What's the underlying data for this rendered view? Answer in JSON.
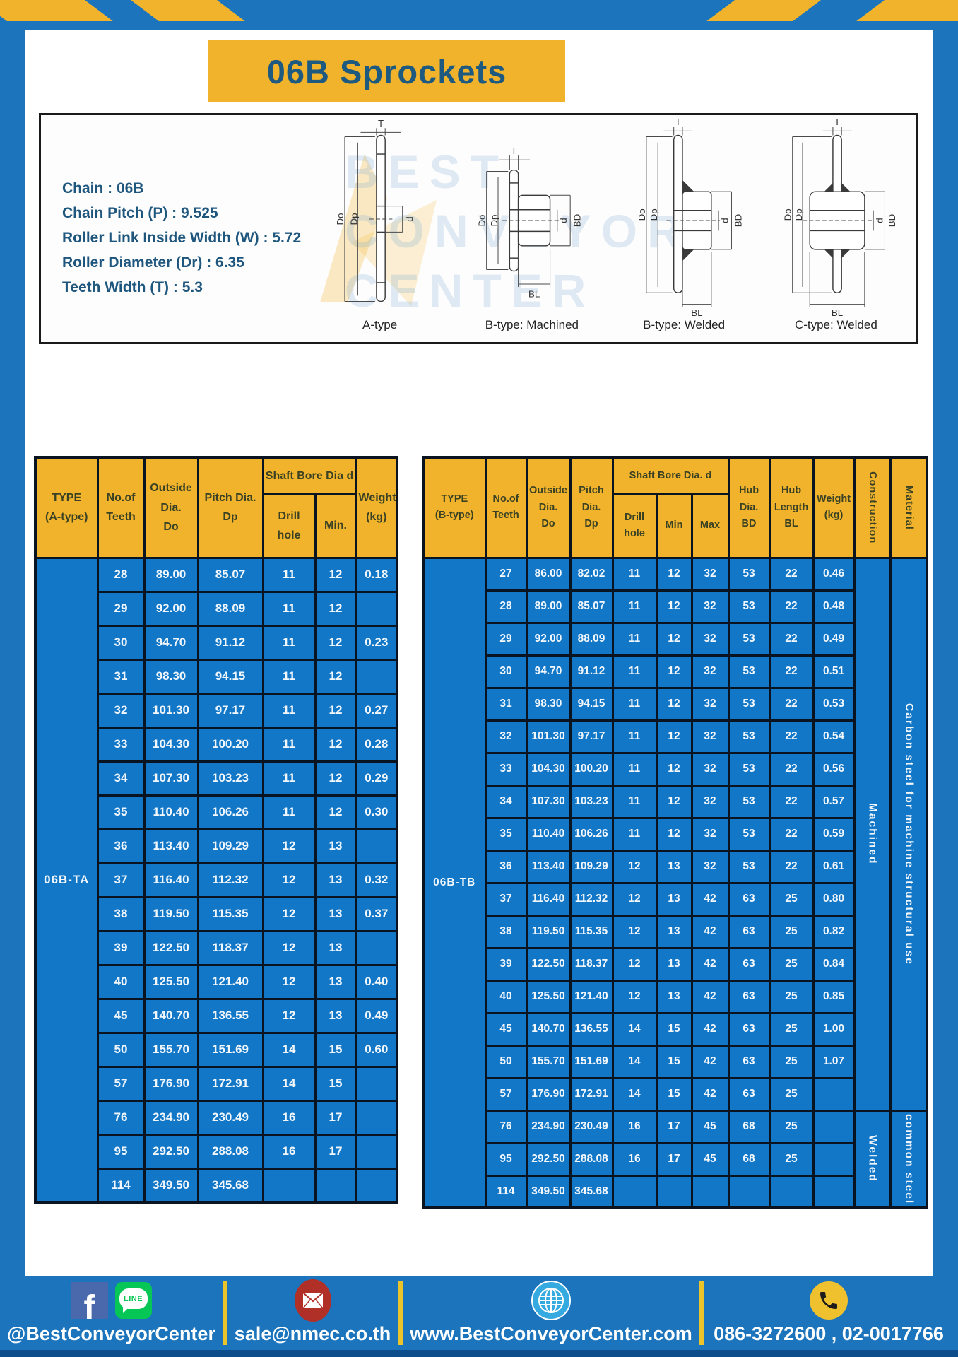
{
  "colors": {
    "frame_blue": "#1B74BC",
    "accent_yellow": "#F0B32B",
    "table_cell_blue": "#1377C8",
    "title_text_blue": "#1E5A80",
    "facebook_blue": "#4A69AD",
    "line_green": "#06C755",
    "email_red": "#B03028",
    "globe_blue": "#35AAE1",
    "phone_yellow": "#F0C12F",
    "footer_divider_yellow": "#EAC428"
  },
  "header": {
    "title": "06B Sprockets"
  },
  "specs": {
    "lines": [
      "Chain  : 06B",
      "Chain Pitch (P)  :  9.525",
      "Roller Link Inside Width (W)  :  5.72",
      "Roller Diameter (Dr)  : 6.35",
      "Teeth Width (T)  :  5.3"
    ]
  },
  "diagrams": {
    "watermark_lines": [
      "BEST",
      "CONVEYOR",
      "CENTER"
    ],
    "dim_labels": {
      "t": "T",
      "do": "Do",
      "dp": "Dp",
      "d": "d",
      "bd": "BD",
      "bl": "BL"
    },
    "captions": [
      "A-type",
      "B-type: Machined",
      "B-type: Welded",
      "C-type: Welded"
    ]
  },
  "tableA": {
    "col_type": "TYPE\n(A-type)",
    "col_teeth": "No.of\nTeeth",
    "col_outside": "Outside\nDia.\nDo",
    "col_pitch": "Pitch Dia.\nDp",
    "col_shaft_bore": "Shaft Bore Dia d",
    "col_drill": "Drill hole",
    "col_min": "Min.",
    "col_weight": "Weight\n(kg)",
    "type_value": "06B-TA",
    "rows": [
      [
        "28",
        "89.00",
        "85.07",
        "11",
        "12",
        "0.18"
      ],
      [
        "29",
        "92.00",
        "88.09",
        "11",
        "12",
        ""
      ],
      [
        "30",
        "94.70",
        "91.12",
        "11",
        "12",
        "0.23"
      ],
      [
        "31",
        "98.30",
        "94.15",
        "11",
        "12",
        ""
      ],
      [
        "32",
        "101.30",
        "97.17",
        "11",
        "12",
        "0.27"
      ],
      [
        "33",
        "104.30",
        "100.20",
        "11",
        "12",
        "0.28"
      ],
      [
        "34",
        "107.30",
        "103.23",
        "11",
        "12",
        "0.29"
      ],
      [
        "35",
        "110.40",
        "106.26",
        "11",
        "12",
        "0.30"
      ],
      [
        "36",
        "113.40",
        "109.29",
        "12",
        "13",
        ""
      ],
      [
        "37",
        "116.40",
        "112.32",
        "12",
        "13",
        "0.32"
      ],
      [
        "38",
        "119.50",
        "115.35",
        "12",
        "13",
        "0.37"
      ],
      [
        "39",
        "122.50",
        "118.37",
        "12",
        "13",
        ""
      ],
      [
        "40",
        "125.50",
        "121.40",
        "12",
        "13",
        "0.40"
      ],
      [
        "45",
        "140.70",
        "136.55",
        "12",
        "13",
        "0.49"
      ],
      [
        "50",
        "155.70",
        "151.69",
        "14",
        "15",
        "0.60"
      ],
      [
        "57",
        "176.90",
        "172.91",
        "14",
        "15",
        ""
      ],
      [
        "76",
        "234.90",
        "230.49",
        "16",
        "17",
        ""
      ],
      [
        "95",
        "292.50",
        "288.08",
        "16",
        "17",
        ""
      ],
      [
        "114",
        "349.50",
        "345.68",
        "",
        "",
        ""
      ]
    ]
  },
  "tableB": {
    "col_type": "TYPE\n(B-type)",
    "col_teeth": "No.of\nTeeth",
    "col_outside": "Outside\nDia.\nDo",
    "col_pitch": "Pitch\nDia.\nDp",
    "col_shaft_bore": "Shaft Bore Dia. d",
    "col_drill": "Drill hole",
    "col_min": "Min",
    "col_max": "Max",
    "col_hub_dia": "Hub\nDia.\nBD",
    "col_hub_len": "Hub\nLength\nBL",
    "col_weight": "Weight\n(kg)",
    "col_construction": "Construction",
    "col_material": "Material",
    "type_value": "06B-TB",
    "construction": [
      {
        "label": "Machined",
        "rows": 17
      },
      {
        "label": "Welded",
        "rows": 3
      }
    ],
    "material": [
      {
        "label": "Carbon steel for machine structural use",
        "rows": 17
      },
      {
        "label": "common steel",
        "rows": 3
      }
    ],
    "rows": [
      [
        "27",
        "86.00",
        "82.02",
        "11",
        "12",
        "32",
        "53",
        "22",
        "0.46"
      ],
      [
        "28",
        "89.00",
        "85.07",
        "11",
        "12",
        "32",
        "53",
        "22",
        "0.48"
      ],
      [
        "29",
        "92.00",
        "88.09",
        "11",
        "12",
        "32",
        "53",
        "22",
        "0.49"
      ],
      [
        "30",
        "94.70",
        "91.12",
        "11",
        "12",
        "32",
        "53",
        "22",
        "0.51"
      ],
      [
        "31",
        "98.30",
        "94.15",
        "11",
        "12",
        "32",
        "53",
        "22",
        "0.53"
      ],
      [
        "32",
        "101.30",
        "97.17",
        "11",
        "12",
        "32",
        "53",
        "22",
        "0.54"
      ],
      [
        "33",
        "104.30",
        "100.20",
        "11",
        "12",
        "32",
        "53",
        "22",
        "0.56"
      ],
      [
        "34",
        "107.30",
        "103.23",
        "11",
        "12",
        "32",
        "53",
        "22",
        "0.57"
      ],
      [
        "35",
        "110.40",
        "106.26",
        "11",
        "12",
        "32",
        "53",
        "22",
        "0.59"
      ],
      [
        "36",
        "113.40",
        "109.29",
        "12",
        "13",
        "32",
        "53",
        "22",
        "0.61"
      ],
      [
        "37",
        "116.40",
        "112.32",
        "12",
        "13",
        "42",
        "63",
        "25",
        "0.80"
      ],
      [
        "38",
        "119.50",
        "115.35",
        "12",
        "13",
        "42",
        "63",
        "25",
        "0.82"
      ],
      [
        "39",
        "122.50",
        "118.37",
        "12",
        "13",
        "42",
        "63",
        "25",
        "0.84"
      ],
      [
        "40",
        "125.50",
        "121.40",
        "12",
        "13",
        "42",
        "63",
        "25",
        "0.85"
      ],
      [
        "45",
        "140.70",
        "136.55",
        "14",
        "15",
        "42",
        "63",
        "25",
        "1.00"
      ],
      [
        "50",
        "155.70",
        "151.69",
        "14",
        "15",
        "42",
        "63",
        "25",
        "1.07"
      ],
      [
        "57",
        "176.90",
        "172.91",
        "14",
        "15",
        "42",
        "63",
        "25",
        ""
      ],
      [
        "76",
        "234.90",
        "230.49",
        "16",
        "17",
        "45",
        "68",
        "25",
        ""
      ],
      [
        "95",
        "292.50",
        "288.08",
        "16",
        "17",
        "45",
        "68",
        "25",
        ""
      ],
      [
        "114",
        "349.50",
        "345.68",
        "",
        "",
        "",
        "",
        "",
        ""
      ]
    ]
  },
  "footer": {
    "facebook_letter": "f",
    "line_label": "LINE",
    "sections": [
      {
        "text": "@BestConveyorCenter"
      },
      {
        "text": "sale@nmec.co.th"
      },
      {
        "text": "www.BestConveyorCenter.com"
      },
      {
        "text": "086-3272600 , 02-0017766"
      }
    ]
  }
}
